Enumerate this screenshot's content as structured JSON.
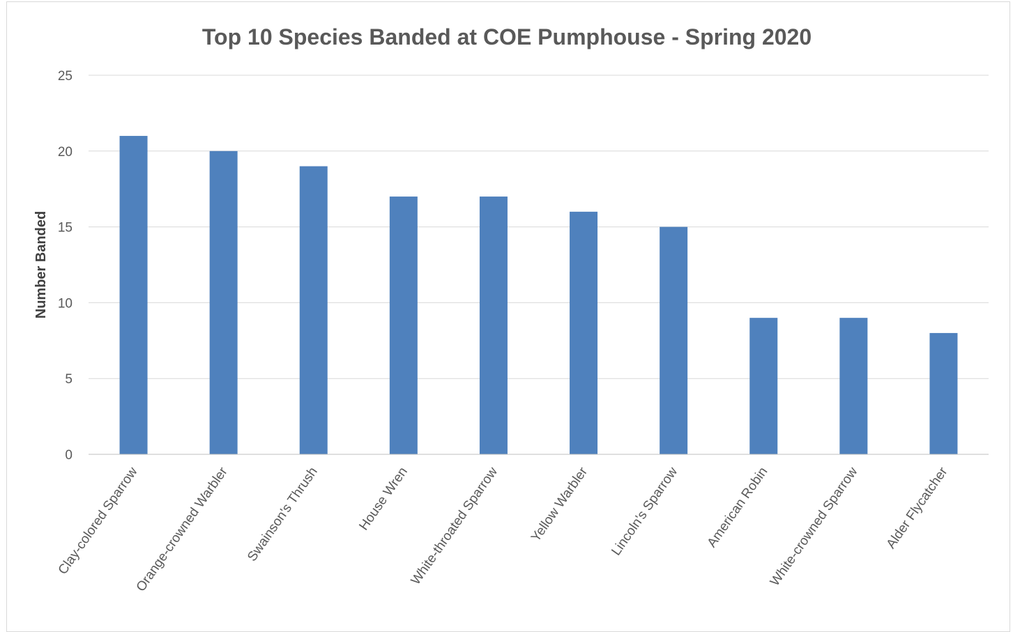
{
  "chart_data": {
    "type": "bar",
    "title": "Top 10 Species Banded at COE Pumphouse - Spring 2020",
    "xlabel": "",
    "ylabel": "Number Banded",
    "categories": [
      "Clay-colored Sparrow",
      "Orange-crowned Warbler",
      "Swainson's Thrush",
      "House Wren",
      "White-throated Sparrow",
      "Yellow Warbler",
      "Lincoln's Sparrow",
      "American Robin",
      "White-crowned Sparrow",
      "Alder Flycatcher"
    ],
    "values": [
      21,
      20,
      19,
      17,
      17,
      16,
      15,
      9,
      9,
      8
    ],
    "ylim": [
      0,
      25
    ],
    "yticks": [
      0,
      5,
      10,
      15,
      20,
      25
    ],
    "grid": true,
    "legend": "none",
    "bar_color": "#4f81bd"
  }
}
